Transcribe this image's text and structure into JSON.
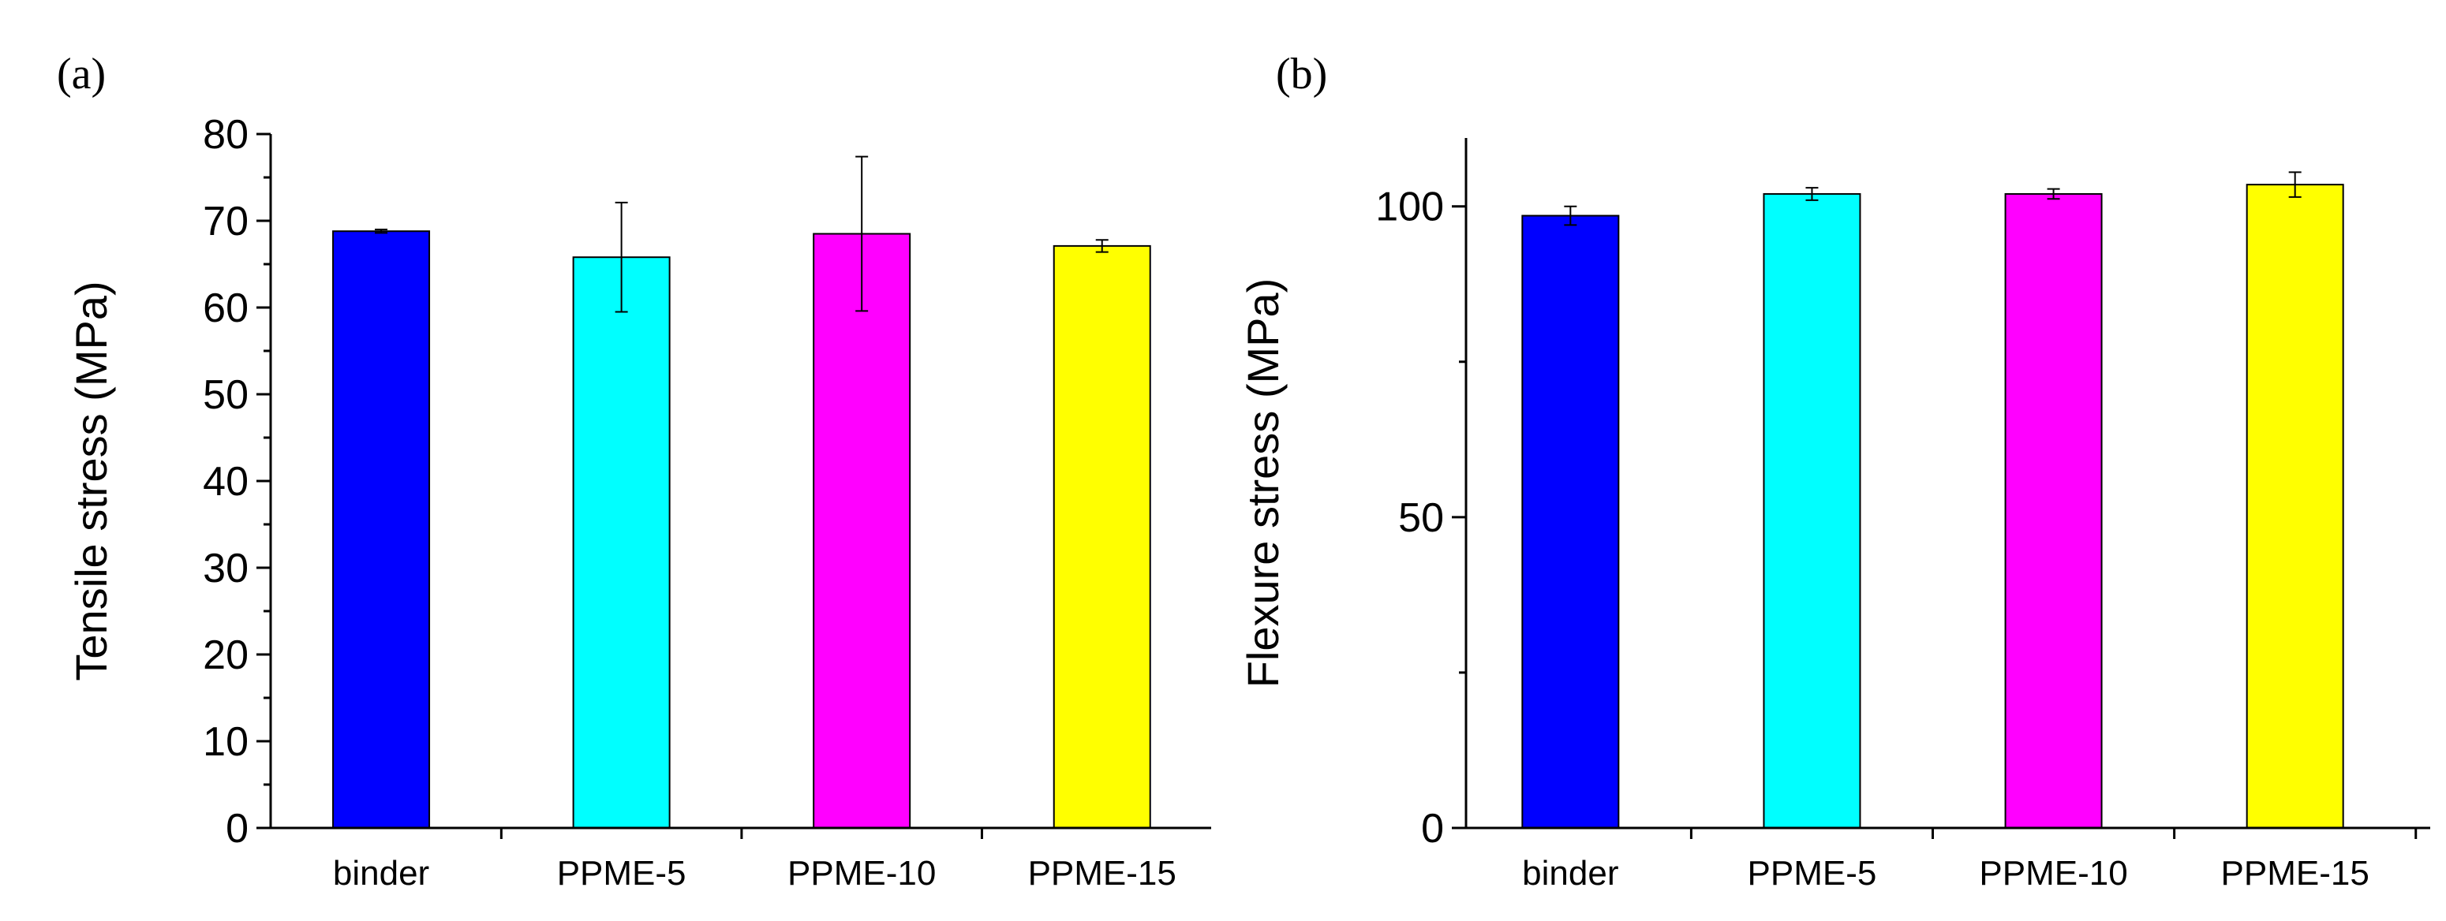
{
  "chart_data": [
    {
      "type": "bar",
      "panel_label": "(a)",
      "categories": [
        "binder",
        "PPME-5",
        "PPME-10",
        "PPME-15"
      ],
      "values": [
        68.8,
        65.8,
        68.5,
        67.1
      ],
      "errors": [
        0.2,
        6.3,
        8.9,
        0.7
      ],
      "colors": [
        "#0000ff",
        "#00ffff",
        "#ff00ff",
        "#ffff00"
      ],
      "title": "",
      "xlabel": "",
      "ylabel": "Tensile stress (MPa)",
      "ylim": [
        0,
        80
      ],
      "major_ticks": [
        0,
        10,
        20,
        30,
        40,
        50,
        60,
        70,
        80
      ],
      "minor_tick_step": 5,
      "grid": false
    },
    {
      "type": "bar",
      "panel_label": "(b)",
      "categories": [
        "binder",
        "PPME-5",
        "PPME-10",
        "PPME-15"
      ],
      "values": [
        98.5,
        102.0,
        102.0,
        103.5
      ],
      "errors": [
        1.5,
        1.0,
        0.8,
        2.0
      ],
      "colors": [
        "#0000ff",
        "#00ffff",
        "#ff00ff",
        "#ffff00"
      ],
      "title": "",
      "xlabel": "",
      "ylabel": "Flexure stress (MPa)",
      "ylim": [
        0,
        111
      ],
      "major_ticks": [
        0,
        50,
        100
      ],
      "minor_tick_step": 25,
      "grid": false
    }
  ]
}
